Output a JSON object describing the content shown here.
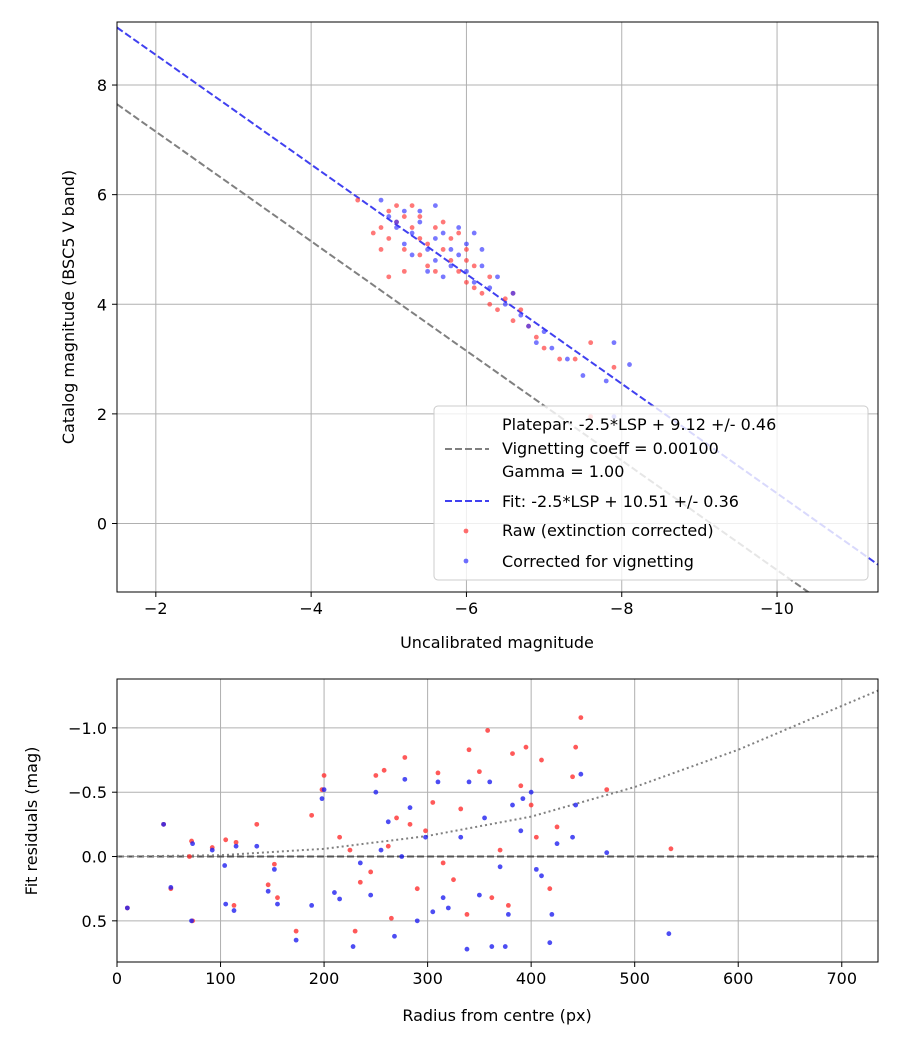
{
  "chart_data": [
    {
      "type": "scatter",
      "title": "",
      "xlabel": "Uncalibrated magnitude",
      "ylabel": "Catalog magnitude (BSC5 V band)",
      "xlim": [
        -1.5,
        -11.3
      ],
      "ylim": [
        9.15,
        -1.25
      ],
      "x_ticks": [
        -2,
        -4,
        -6,
        -8,
        -10
      ],
      "x_tick_labels": [
        "−2",
        "−4",
        "−6",
        "−8",
        "−10"
      ],
      "y_ticks": [
        0,
        2,
        4,
        6,
        8
      ],
      "y_tick_labels": [
        "0",
        "2",
        "4",
        "6",
        "8"
      ],
      "grid": true,
      "legend_position": "lower-right",
      "lines": [
        {
          "name": "Platepar: -2.5*LSP + 9.12 +/- 0.46",
          "name_lines": [
            "Platepar: -2.5*LSP + 9.12 +/- 0.46",
            "Vignetting coeff = 0.00100",
            "Gamma = 1.00"
          ],
          "x": [
            -1.5,
            -11.3
          ],
          "y": [
            7.65,
            -2.15
          ],
          "color": "#808080",
          "dash": "dashed"
        },
        {
          "name": "Fit: -2.5*LSP + 10.51 +/- 0.36",
          "x": [
            -1.5,
            -11.3
          ],
          "y": [
            9.05,
            -0.75
          ],
          "color": "#4040f0",
          "dash": "dashed"
        }
      ],
      "series": [
        {
          "name": "Raw (extinction corrected)",
          "color": "#ff3030",
          "points": [
            [
              -4.6,
              5.9
            ],
            [
              -4.8,
              5.3
            ],
            [
              -4.9,
              5.4
            ],
            [
              -5.0,
              5.7
            ],
            [
              -5.0,
              5.2
            ],
            [
              -5.1,
              5.8
            ],
            [
              -5.1,
              5.5
            ],
            [
              -5.2,
              5.6
            ],
            [
              -5.2,
              5.0
            ],
            [
              -5.3,
              5.4
            ],
            [
              -5.3,
              5.8
            ],
            [
              -5.4,
              5.2
            ],
            [
              -5.4,
              5.6
            ],
            [
              -5.5,
              4.7
            ],
            [
              -5.5,
              5.1
            ],
            [
              -5.6,
              5.4
            ],
            [
              -5.6,
              4.6
            ],
            [
              -5.7,
              5.0
            ],
            [
              -5.7,
              5.5
            ],
            [
              -5.8,
              4.8
            ],
            [
              -5.8,
              5.2
            ],
            [
              -5.9,
              4.6
            ],
            [
              -5.9,
              5.3
            ],
            [
              -6.0,
              4.4
            ],
            [
              -6.0,
              5.0
            ],
            [
              -6.1,
              4.3
            ],
            [
              -6.1,
              4.7
            ],
            [
              -6.2,
              4.2
            ],
            [
              -6.3,
              4.0
            ],
            [
              -6.3,
              4.5
            ],
            [
              -6.4,
              3.9
            ],
            [
              -6.5,
              4.1
            ],
            [
              -6.6,
              3.7
            ],
            [
              -6.7,
              3.9
            ],
            [
              -6.8,
              3.6
            ],
            [
              -6.9,
              3.4
            ],
            [
              -7.0,
              3.2
            ],
            [
              -7.2,
              3.0
            ],
            [
              -7.4,
              3.0
            ],
            [
              -7.6,
              3.3
            ],
            [
              -7.6,
              1.95
            ],
            [
              -7.9,
              2.85
            ],
            [
              -5.0,
              4.5
            ],
            [
              -5.2,
              4.6
            ],
            [
              -4.9,
              5.0
            ],
            [
              -5.4,
              4.9
            ],
            [
              -6.0,
              4.8
            ],
            [
              -6.6,
              4.2
            ]
          ]
        },
        {
          "name": "Corrected for vignetting",
          "color": "#3030ff",
          "points": [
            [
              -4.9,
              5.9
            ],
            [
              -5.0,
              5.6
            ],
            [
              -5.1,
              5.4
            ],
            [
              -5.2,
              5.7
            ],
            [
              -5.2,
              5.1
            ],
            [
              -5.3,
              5.3
            ],
            [
              -5.3,
              4.9
            ],
            [
              -5.4,
              5.5
            ],
            [
              -5.5,
              5.0
            ],
            [
              -5.5,
              4.6
            ],
            [
              -5.6,
              5.2
            ],
            [
              -5.6,
              4.8
            ],
            [
              -5.7,
              5.3
            ],
            [
              -5.7,
              4.5
            ],
            [
              -5.8,
              5.0
            ],
            [
              -5.8,
              4.7
            ],
            [
              -5.9,
              5.4
            ],
            [
              -5.9,
              4.9
            ],
            [
              -6.0,
              4.6
            ],
            [
              -6.0,
              5.1
            ],
            [
              -6.1,
              4.4
            ],
            [
              -6.2,
              4.7
            ],
            [
              -6.3,
              4.3
            ],
            [
              -6.4,
              4.5
            ],
            [
              -6.5,
              4.0
            ],
            [
              -6.6,
              4.2
            ],
            [
              -6.7,
              3.8
            ],
            [
              -6.8,
              3.6
            ],
            [
              -6.9,
              3.3
            ],
            [
              -7.1,
              3.2
            ],
            [
              -7.3,
              3.0
            ],
            [
              -7.5,
              2.7
            ],
            [
              -7.8,
              2.6
            ],
            [
              -7.9,
              1.95
            ],
            [
              -8.1,
              2.9
            ],
            [
              -7.9,
              3.3
            ],
            [
              -5.4,
              5.7
            ],
            [
              -5.1,
              5.5
            ],
            [
              -6.2,
              5.0
            ],
            [
              -5.6,
              5.8
            ],
            [
              -6.1,
              5.3
            ],
            [
              -7.0,
              3.5
            ]
          ]
        }
      ]
    },
    {
      "type": "scatter",
      "title": "",
      "xlabel": "Radius from centre (px)",
      "ylabel": "Fit residuals (mag)",
      "xlim": [
        0,
        735
      ],
      "ylim": [
        -1.38,
        0.82
      ],
      "x_ticks": [
        0,
        100,
        200,
        300,
        400,
        500,
        600,
        700
      ],
      "x_tick_labels": [
        "0",
        "100",
        "200",
        "300",
        "400",
        "500",
        "600",
        "700"
      ],
      "y_ticks": [
        0.5,
        0.0,
        -0.5,
        -1.0
      ],
      "y_tick_labels": [
        "0.5",
        "0.0",
        "−0.5",
        "−1.0"
      ],
      "grid": true,
      "lines": [
        {
          "name": "",
          "x": [
            0,
            735
          ],
          "y": [
            0,
            0
          ],
          "color": "#555555",
          "dash": "dashed"
        },
        {
          "name": "",
          "x": [
            0,
            100,
            200,
            300,
            400,
            500,
            600,
            735
          ],
          "y": [
            0,
            -0.01,
            -0.06,
            -0.16,
            -0.31,
            -0.54,
            -0.83,
            -1.29
          ],
          "color": "#808080",
          "dash": "dotted"
        }
      ],
      "series": [
        {
          "name": "",
          "color": "#ff3030",
          "points": [
            [
              10,
              0.4
            ],
            [
              45,
              -0.25
            ],
            [
              52,
              0.25
            ],
            [
              70,
              0.0
            ],
            [
              72,
              -0.12
            ],
            [
              73,
              0.5
            ],
            [
              92,
              -0.07
            ],
            [
              105,
              -0.13
            ],
            [
              113,
              0.38
            ],
            [
              115,
              -0.11
            ],
            [
              135,
              -0.25
            ],
            [
              146,
              0.22
            ],
            [
              152,
              0.06
            ],
            [
              155,
              0.32
            ],
            [
              173,
              0.58
            ],
            [
              188,
              -0.32
            ],
            [
              198,
              -0.52
            ],
            [
              200,
              -0.63
            ],
            [
              215,
              -0.15
            ],
            [
              225,
              -0.05
            ],
            [
              230,
              0.58
            ],
            [
              235,
              0.2
            ],
            [
              245,
              0.12
            ],
            [
              250,
              -0.63
            ],
            [
              258,
              -0.67
            ],
            [
              262,
              -0.08
            ],
            [
              265,
              0.48
            ],
            [
              270,
              -0.3
            ],
            [
              278,
              -0.77
            ],
            [
              283,
              -0.25
            ],
            [
              290,
              0.25
            ],
            [
              298,
              -0.2
            ],
            [
              305,
              -0.42
            ],
            [
              310,
              -0.65
            ],
            [
              315,
              0.05
            ],
            [
              325,
              0.18
            ],
            [
              332,
              -0.37
            ],
            [
              338,
              0.45
            ],
            [
              340,
              -0.83
            ],
            [
              350,
              -0.66
            ],
            [
              358,
              -0.98
            ],
            [
              362,
              0.32
            ],
            [
              370,
              -0.05
            ],
            [
              378,
              0.38
            ],
            [
              382,
              -0.8
            ],
            [
              390,
              -0.55
            ],
            [
              395,
              -0.85
            ],
            [
              400,
              -0.4
            ],
            [
              405,
              -0.15
            ],
            [
              410,
              -0.75
            ],
            [
              418,
              0.25
            ],
            [
              425,
              -0.23
            ],
            [
              440,
              -0.62
            ],
            [
              443,
              -0.85
            ],
            [
              448,
              -1.08
            ],
            [
              473,
              -0.52
            ],
            [
              535,
              -0.06
            ]
          ]
        },
        {
          "name": "",
          "color": "#2020f0",
          "points": [
            [
              10,
              0.4
            ],
            [
              45,
              -0.25
            ],
            [
              52,
              0.24
            ],
            [
              72,
              0.5
            ],
            [
              73,
              -0.1
            ],
            [
              92,
              -0.05
            ],
            [
              104,
              0.07
            ],
            [
              105,
              0.37
            ],
            [
              113,
              0.42
            ],
            [
              115,
              -0.08
            ],
            [
              135,
              -0.08
            ],
            [
              146,
              0.27
            ],
            [
              152,
              0.1
            ],
            [
              155,
              0.37
            ],
            [
              173,
              0.65
            ],
            [
              188,
              0.38
            ],
            [
              198,
              -0.45
            ],
            [
              200,
              -0.52
            ],
            [
              210,
              0.28
            ],
            [
              215,
              0.33
            ],
            [
              228,
              0.7
            ],
            [
              235,
              0.05
            ],
            [
              245,
              0.3
            ],
            [
              250,
              -0.5
            ],
            [
              255,
              -0.05
            ],
            [
              262,
              -0.27
            ],
            [
              268,
              0.62
            ],
            [
              275,
              0.0
            ],
            [
              278,
              -0.6
            ],
            [
              283,
              -0.38
            ],
            [
              290,
              0.5
            ],
            [
              298,
              -0.15
            ],
            [
              305,
              0.43
            ],
            [
              310,
              -0.58
            ],
            [
              315,
              0.32
            ],
            [
              320,
              0.4
            ],
            [
              332,
              -0.15
            ],
            [
              338,
              0.72
            ],
            [
              340,
              -0.58
            ],
            [
              350,
              0.3
            ],
            [
              355,
              -0.3
            ],
            [
              360,
              -0.58
            ],
            [
              362,
              0.7
            ],
            [
              370,
              0.08
            ],
            [
              375,
              0.7
            ],
            [
              378,
              0.45
            ],
            [
              382,
              -0.4
            ],
            [
              390,
              -0.2
            ],
            [
              392,
              -0.45
            ],
            [
              400,
              -0.5
            ],
            [
              405,
              0.1
            ],
            [
              410,
              0.15
            ],
            [
              418,
              0.67
            ],
            [
              420,
              0.45
            ],
            [
              425,
              -0.1
            ],
            [
              440,
              -0.15
            ],
            [
              443,
              -0.4
            ],
            [
              448,
              -0.64
            ],
            [
              473,
              -0.03
            ],
            [
              533,
              0.6
            ]
          ]
        }
      ]
    }
  ]
}
